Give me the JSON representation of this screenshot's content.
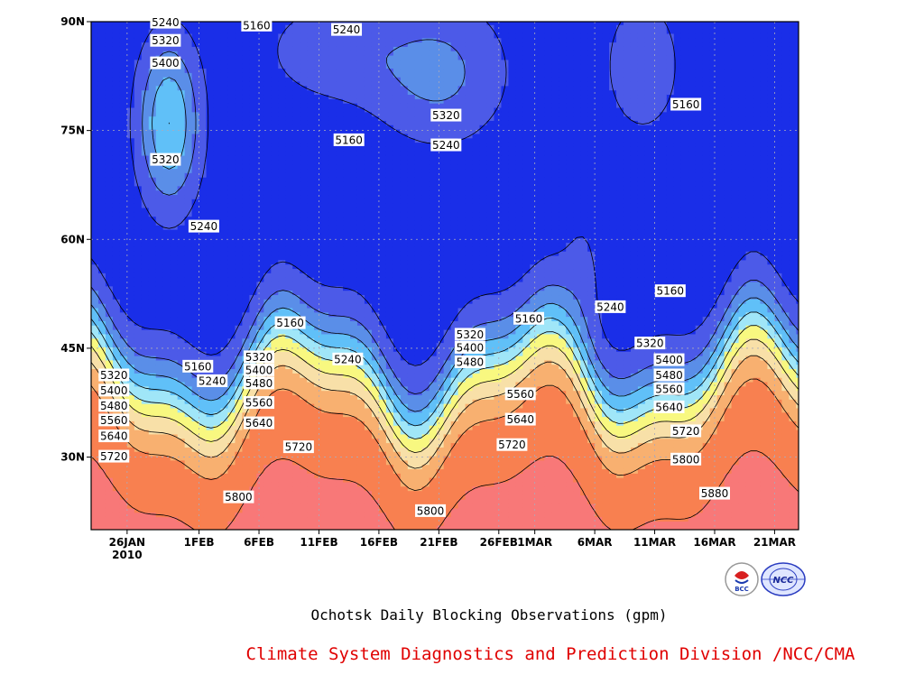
{
  "caption": "Ochotsk Daily Blocking Observations (gpm)",
  "credit": "Climate System Diagnostics and Prediction Division /NCC/CMA",
  "logos": {
    "bcc_text": "BCC",
    "ncc_text": "NCC"
  },
  "chart_data": {
    "type": "heatmap",
    "title": "Ochotsk Daily Blocking Observations (gpm)",
    "x_ticks": [
      "26JAN",
      "1FEB",
      "6FEB",
      "11FEB",
      "16FEB",
      "21FEB",
      "26FEB",
      "1MAR",
      "6MAR",
      "11MAR",
      "16MAR",
      "21MAR"
    ],
    "x_tick_days": [
      0,
      6,
      11,
      16,
      21,
      26,
      31,
      34,
      39,
      44,
      49,
      54
    ],
    "x_year_label": "2010",
    "x_range_days": [
      -3,
      56
    ],
    "y_ticks": [
      "30N",
      "45N",
      "60N",
      "75N",
      "90N"
    ],
    "y_tick_values": [
      30,
      45,
      60,
      75,
      90
    ],
    "y_range": [
      20,
      90
    ],
    "grid": true,
    "contour_levels": [
      5160,
      5240,
      5320,
      5400,
      5480,
      5560,
      5640,
      5720,
      5800,
      5880
    ],
    "level_colors": [
      "#0c1670",
      "#1a2ee8",
      "#4c5ae8",
      "#5a8ee8",
      "#60c0f8",
      "#a0e6f8",
      "#f8f880",
      "#f8e0a8",
      "#f8b070",
      "#f88050",
      "#f87878",
      "#e83c50"
    ],
    "contour_labels": [
      {
        "text": "5240",
        "day": 3.2,
        "lat": 89.8
      },
      {
        "text": "5320",
        "day": 3.2,
        "lat": 87.3
      },
      {
        "text": "5400",
        "day": 3.2,
        "lat": 84.2
      },
      {
        "text": "5320",
        "day": 3.2,
        "lat": 70.9
      },
      {
        "text": "5240",
        "day": 6.4,
        "lat": 61.7
      },
      {
        "text": "5160",
        "day": 10.8,
        "lat": 89.4
      },
      {
        "text": "5240",
        "day": 18.3,
        "lat": 88.8
      },
      {
        "text": "5320",
        "day": 26.6,
        "lat": 77.0
      },
      {
        "text": "5240",
        "day": 26.6,
        "lat": 72.9
      },
      {
        "text": "5160",
        "day": 18.5,
        "lat": 73.6
      },
      {
        "text": "5160",
        "day": 46.6,
        "lat": 78.5
      },
      {
        "text": "5160",
        "day": 45.3,
        "lat": 52.8
      },
      {
        "text": "5240",
        "day": 40.3,
        "lat": 50.6
      },
      {
        "text": "5160",
        "day": 33.5,
        "lat": 49.0
      },
      {
        "text": "5160",
        "day": 13.6,
        "lat": 48.4
      },
      {
        "text": "5160",
        "day": 5.9,
        "lat": 42.4
      },
      {
        "text": "5240",
        "day": 7.1,
        "lat": 40.4
      },
      {
        "text": "5320",
        "day": 11.0,
        "lat": 43.7
      },
      {
        "text": "5400",
        "day": 11.0,
        "lat": 41.9
      },
      {
        "text": "5480",
        "day": 11.0,
        "lat": 40.1
      },
      {
        "text": "5560",
        "day": 11.0,
        "lat": 37.4
      },
      {
        "text": "5640",
        "day": 11.0,
        "lat": 34.6
      },
      {
        "text": "5720",
        "day": 14.3,
        "lat": 31.3
      },
      {
        "text": "5240",
        "day": 18.4,
        "lat": 43.4
      },
      {
        "text": "5320",
        "day": 28.6,
        "lat": 46.8
      },
      {
        "text": "5400",
        "day": 28.6,
        "lat": 45.0
      },
      {
        "text": "5480",
        "day": 28.6,
        "lat": 43.0
      },
      {
        "text": "5560",
        "day": 32.8,
        "lat": 38.6
      },
      {
        "text": "5640",
        "day": 32.8,
        "lat": 35.1
      },
      {
        "text": "5720",
        "day": 32.1,
        "lat": 31.6
      },
      {
        "text": "5800",
        "day": 25.3,
        "lat": 22.5
      },
      {
        "text": "5800",
        "day": 9.3,
        "lat": 24.4
      },
      {
        "text": "5320",
        "day": -1.1,
        "lat": 41.2
      },
      {
        "text": "5400",
        "day": -1.1,
        "lat": 39.1
      },
      {
        "text": "5480",
        "day": -1.1,
        "lat": 37.0
      },
      {
        "text": "5560",
        "day": -1.1,
        "lat": 35.0
      },
      {
        "text": "5640",
        "day": -1.1,
        "lat": 32.8
      },
      {
        "text": "5720",
        "day": -1.1,
        "lat": 30.0
      },
      {
        "text": "5320",
        "day": 43.6,
        "lat": 45.6
      },
      {
        "text": "5400",
        "day": 45.2,
        "lat": 43.3
      },
      {
        "text": "5480",
        "day": 45.2,
        "lat": 41.2
      },
      {
        "text": "5560",
        "day": 45.2,
        "lat": 39.3
      },
      {
        "text": "5640",
        "day": 45.2,
        "lat": 36.8
      },
      {
        "text": "5720",
        "day": 46.6,
        "lat": 33.5
      },
      {
        "text": "5800",
        "day": 46.6,
        "lat": 29.6
      },
      {
        "text": "5880",
        "day": 49.0,
        "lat": 24.9
      }
    ]
  }
}
